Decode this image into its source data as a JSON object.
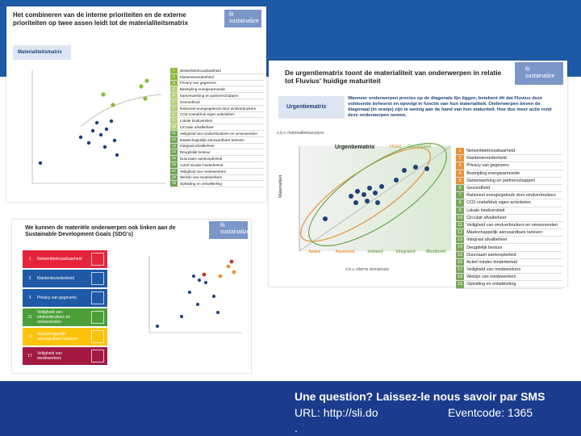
{
  "footer": {
    "question": "Une question? Laissez-le nous savoir par SMS",
    "url": "URL: http://sli.do",
    "eventcode": "Eventcode: 1365",
    "dot": "."
  },
  "slide1": {
    "title": "Het combineren van de interne prioriteiten en de externe prioriteiten op twee assen leidt tot de materialiteitsmatrix",
    "logo": "fit sustainalize",
    "tag": "Materialiteitsmatrix",
    "items": [
      {
        "n": "1",
        "label": "Netwerkbetrouwbaarheid"
      },
      {
        "n": "2",
        "label": "Klantentevredenheid"
      },
      {
        "n": "3",
        "label": "Privacy van gegevens"
      },
      {
        "n": "4",
        "label": "Bestrijding energiearmoede"
      },
      {
        "n": "5",
        "label": "Samenwerking en partnerschappen"
      },
      {
        "n": "6",
        "label": "Gezondheid"
      },
      {
        "n": "7",
        "label": "Rationeel energiegebruik door eindverbruikers"
      },
      {
        "n": "8",
        "label": "CO2-voetafdruk eigen activiteiten"
      },
      {
        "n": "9",
        "label": "Lokale biodiversiteit"
      },
      {
        "n": "10",
        "label": "Circulair afvalbeheer"
      },
      {
        "n": "11",
        "label": "Veiligheid van eindverbruikers en omwonenden"
      },
      {
        "n": "12",
        "label": "Maatschappelijk aanvaardbare tarieven"
      },
      {
        "n": "13",
        "label": "Integraal afvalbeheer"
      },
      {
        "n": "14",
        "label": "Deugdelijk bestuur"
      },
      {
        "n": "15",
        "label": "Duurzaam aankoopbeleid"
      },
      {
        "n": "16",
        "label": "Actief minder-hinderbeleid"
      },
      {
        "n": "17",
        "label": "Veiligheid van medewerkers"
      },
      {
        "n": "18",
        "label": "Welzijn van medewerkers"
      },
      {
        "n": "19",
        "label": "Opleiding en ontwikkeling"
      }
    ]
  },
  "slide2": {
    "title": "De urgentiematrix toont de materialiteit van onderwerpen in relatie tot Fluvius' huidige maturiteit",
    "logo": "fit sustainalize",
    "tag": "Urgentiematrix",
    "text": "Wanneer onderwerpen precies op de diagonale lijn liggen, betekent dit dat Fluvius deze voldoende beheerst en opvolgt in functie van hun materialiteit. Onderwerpen boven de diagonaal (in oranje) zijn te weinig aan de hand van hun maturiteit. Hoe dus meer actie rond deze onderwerpen nemen.",
    "y_caption": "o.b.v. materialiteitsanalyse",
    "chart_title": "Urgentiematrix",
    "high": "Hoog",
    "medium": "Gemiddeld",
    "y_label": "Materialiteit",
    "x_label": "Maturiteit",
    "stages": [
      "Aware",
      "Assessed",
      "Initiated",
      "Integrated",
      "Monitored"
    ],
    "x_caption": "o.b.v. interne demaessie",
    "items": [
      {
        "n": "1",
        "label": "Netwerkbetrouwbaarheid"
      },
      {
        "n": "2",
        "label": "Klantentevredenheid"
      },
      {
        "n": "3",
        "label": "Privacy van gegevens"
      },
      {
        "n": "4",
        "label": "Bestrijding energiearmoede"
      },
      {
        "n": "5",
        "label": "Samenwerking en partnerschappen"
      },
      {
        "n": "6",
        "label": "Gezondheid"
      },
      {
        "n": "7",
        "label": "Rationeel energiegebruik door eindverbruikers"
      },
      {
        "n": "8",
        "label": "CO2-voetafdruk eigen activiteiten"
      },
      {
        "n": "9",
        "label": "Lokale biodiversiteit"
      },
      {
        "n": "10",
        "label": "Circulair afvalbeheer"
      },
      {
        "n": "11",
        "label": "Veiligheid van eindverbruikers en omwonenden"
      },
      {
        "n": "12",
        "label": "Maatschappelijk aanvaardbare tarieven"
      },
      {
        "n": "13",
        "label": "Integraal afvalbeheer"
      },
      {
        "n": "14",
        "label": "Deugdelijk bestuur"
      },
      {
        "n": "15",
        "label": "Duurzaam aankoopbeleid"
      },
      {
        "n": "16",
        "label": "Actief minder-hinderbeleid"
      },
      {
        "n": "17",
        "label": "Veiligheid van medewerkers"
      },
      {
        "n": "18",
        "label": "Welzijn van medewerkers"
      },
      {
        "n": "19",
        "label": "Opleiding en ontwikkeling"
      }
    ]
  },
  "slide3": {
    "title": "We kunnen de materiële onderwerpen ook linken aan de Sustainable Development Goals (SDG's)",
    "logo": "fit sustainalize",
    "rows": [
      {
        "n": "1",
        "label": "Netwerkbetrouwbaarheid"
      },
      {
        "n": "2",
        "label": "Klantentevredenheid"
      },
      {
        "n": "3",
        "label": "Privacy van gegevens"
      },
      {
        "n": "11",
        "label": "Veiligheid van eindverbruikers en omwonenden"
      },
      {
        "n": "12",
        "label": "Maatschappelijk aanvaardbare tarieven"
      },
      {
        "n": "17",
        "label": "Veiligheid van medewerkers"
      }
    ]
  }
}
